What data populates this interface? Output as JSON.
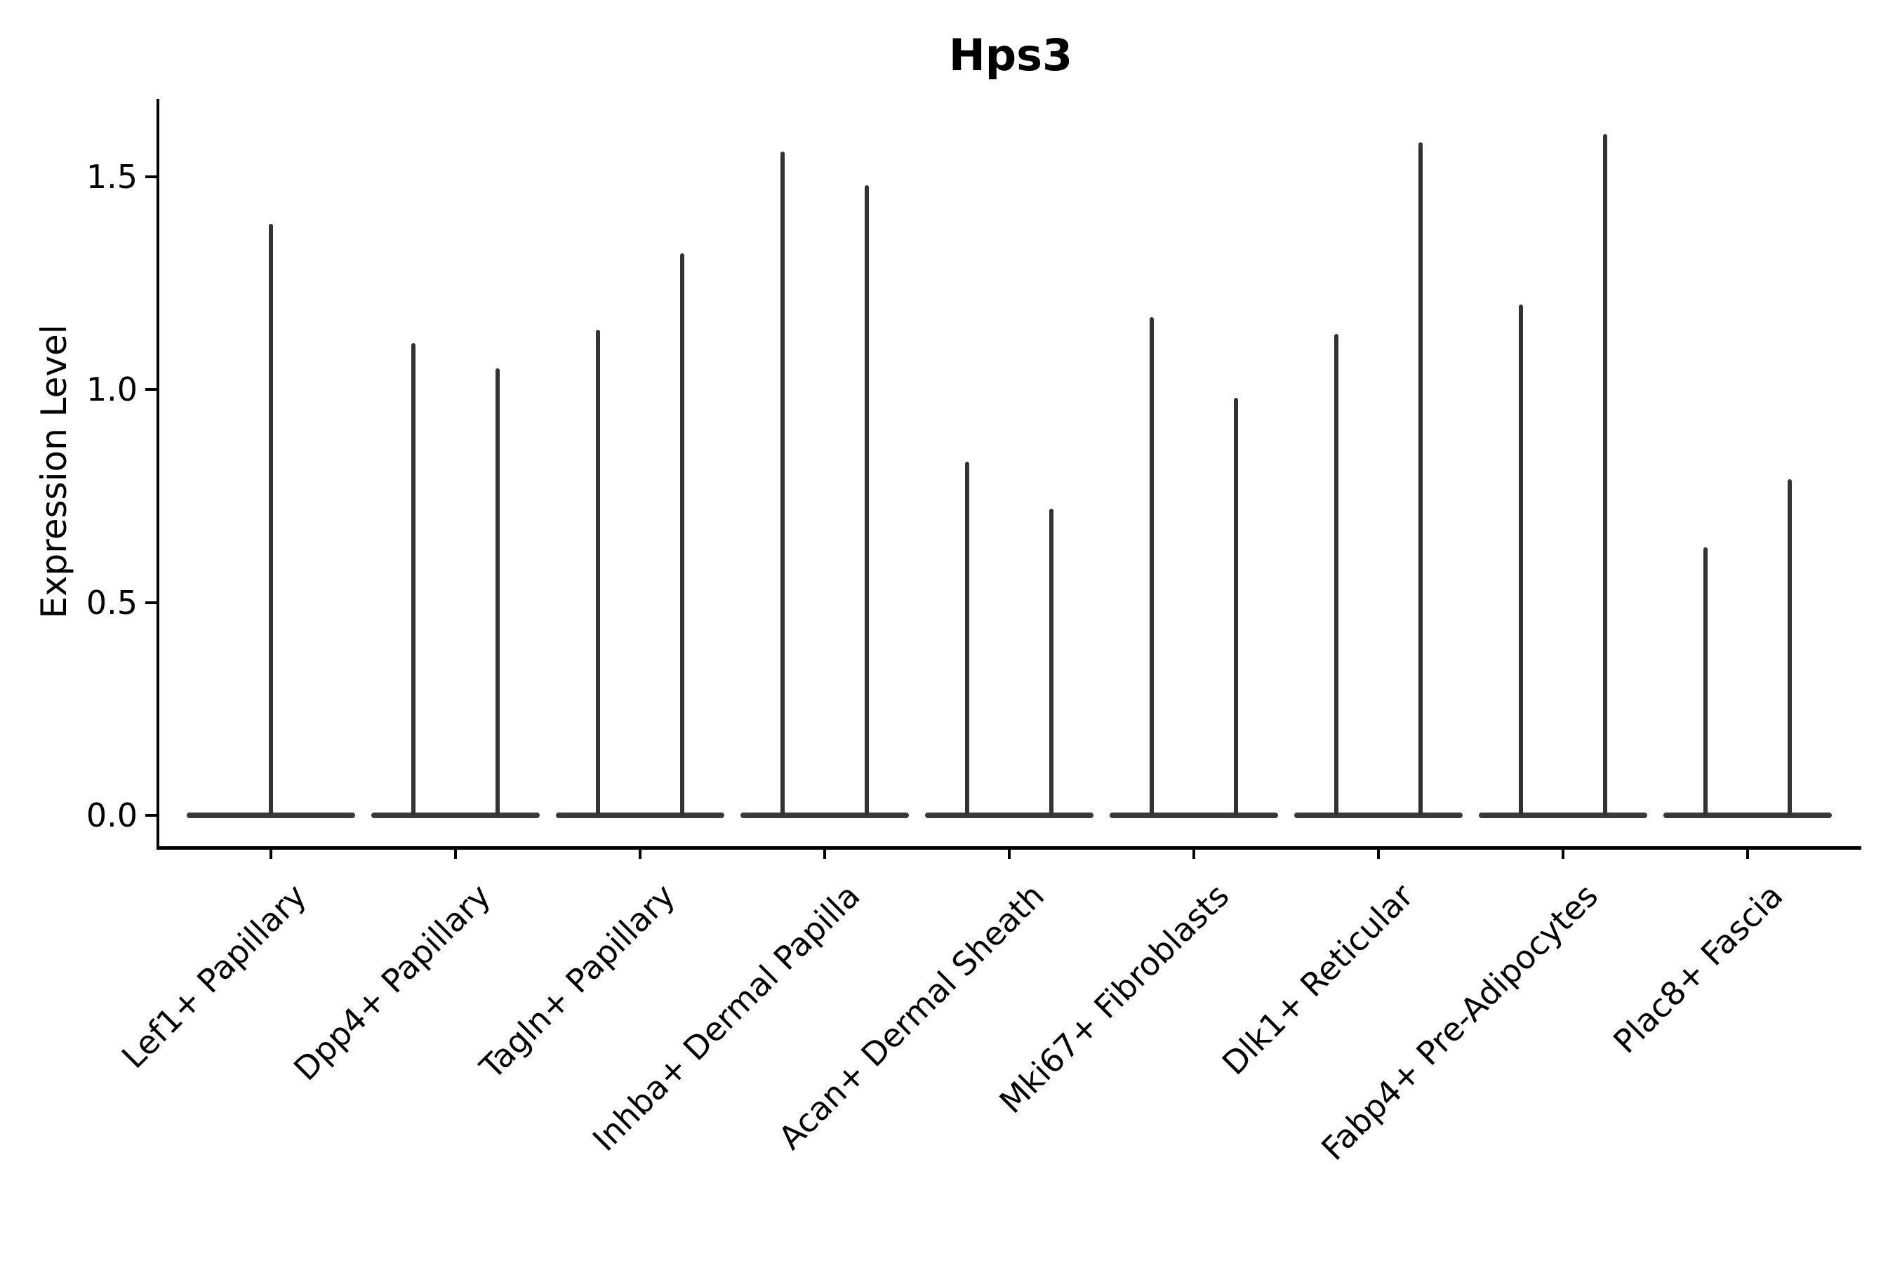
{
  "chart_data": {
    "type": "violin",
    "title": "Hps3",
    "xlabel": "",
    "ylabel": "Expression Level",
    "categories": [
      "Lef1+ Papillary",
      "Dpp4+ Papillary",
      "Tagln+ Papillary",
      "Inhba+ Dermal Papilla",
      "Acan+ Dermal Sheath",
      "Mki67+ Fibroblasts",
      "Dlk1+ Reticular",
      "Fabp4+ Pre-Adipocytes",
      "Plac8+ Fascia"
    ],
    "series_note": "Each violin is density-collapsed at expression 0 (flat base at y=0) with a single thin spike rising to the listed maximum expression value. Category 1 has one full-width violin; all other categories have two side-by-side violins.",
    "spike_maxima": [
      [
        1.39
      ],
      [
        1.11,
        1.05
      ],
      [
        1.14,
        1.32
      ],
      [
        1.56,
        1.48
      ],
      [
        0.83,
        0.72
      ],
      [
        1.17,
        0.98
      ],
      [
        1.13,
        1.58
      ],
      [
        1.2,
        1.6
      ],
      [
        0.63,
        0.79
      ]
    ],
    "yticks": [
      "0.0",
      "0.5",
      "1.0",
      "1.5"
    ],
    "ytick_values": [
      0.0,
      0.5,
      1.0,
      1.5
    ],
    "ylim": [
      -0.076,
      1.683
    ],
    "grid": false,
    "legend": null,
    "colors": {
      "violin": "#333333",
      "axis": "#000000",
      "text": "#000000",
      "background": "#ffffff"
    }
  }
}
